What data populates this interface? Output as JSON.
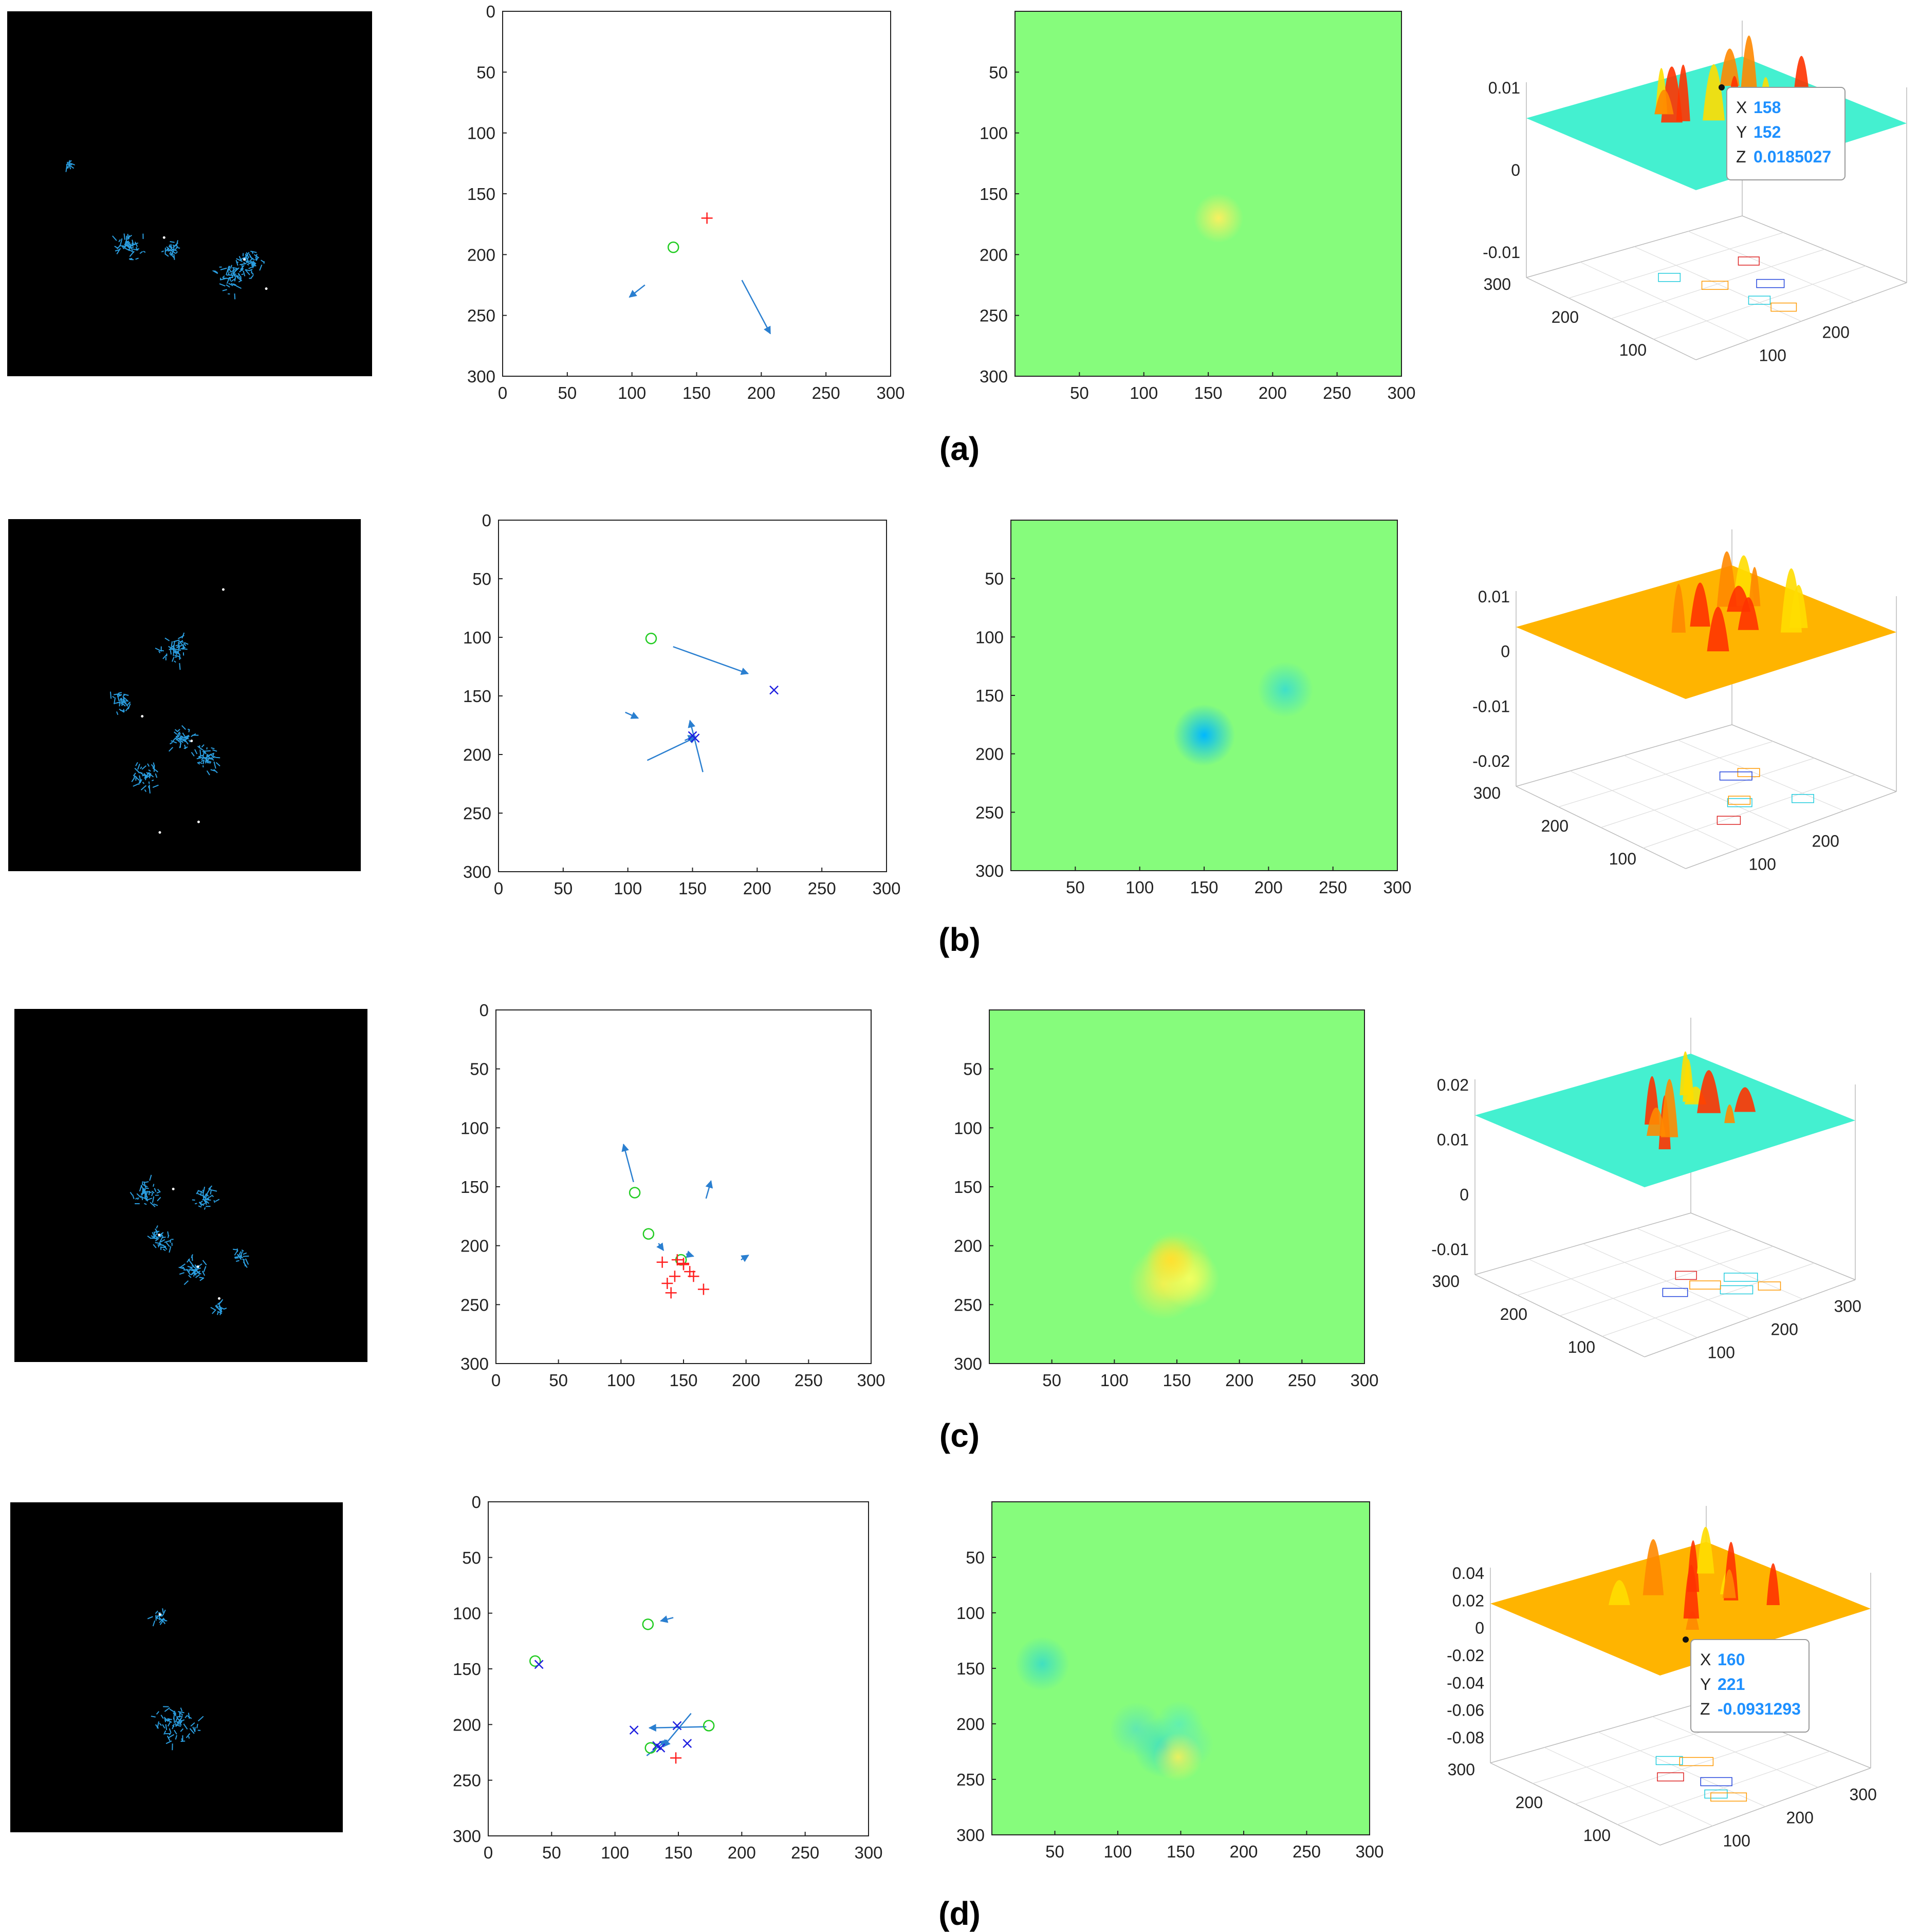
{
  "colors": {
    "flow_background": "#000000",
    "flow_vectors": "#2b9ee0",
    "flow_points": "#ffffff",
    "quiver_arrow": "#2a7fd0",
    "marker_circle": "#22cc22",
    "marker_plus": "#ff2020",
    "marker_x": "#2020e0",
    "heatmap_background": "#86fc7c",
    "tooltip_value": "#1e90ff",
    "axis": "#222222"
  },
  "icons": {
    "flow_image": "optical-flow-image-icon",
    "surface_plot": "3d-surface-plot-icon"
  },
  "rows": [
    {
      "caption": "(a)",
      "surface": {
        "zticks": [
          "0.01",
          "0",
          "-0.01"
        ],
        "ylabels": [
          "300",
          "200",
          "100"
        ],
        "xlabels": [
          "100",
          "200"
        ],
        "plane_color": "#44f0d0",
        "tooltip": {
          "x_label": "X",
          "x_value": "158",
          "y_label": "Y",
          "y_value": "152",
          "z_label": "Z",
          "z_value": "0.0185027"
        }
      }
    },
    {
      "caption": "(b)",
      "surface": {
        "zticks": [
          "0.01",
          "0",
          "-0.01",
          "-0.02"
        ],
        "ylabels": [
          "300",
          "200",
          "100"
        ],
        "xlabels": [
          "100",
          "200"
        ],
        "plane_color": "#ffb400"
      }
    },
    {
      "caption": "(c)",
      "surface": {
        "zticks": [
          "0.02",
          "0.01",
          "0",
          "-0.01"
        ],
        "ylabels": [
          "300",
          "200",
          "100"
        ],
        "xlabels": [
          "100",
          "200",
          "300"
        ],
        "plane_color": "#44f0d0"
      }
    },
    {
      "caption": "(d)",
      "surface": {
        "zticks": [
          "0.04",
          "0.02",
          "0",
          "-0.02",
          "-0.04",
          "-0.06",
          "-0.08"
        ],
        "ylabels": [
          "300",
          "200",
          "100"
        ],
        "xlabels": [
          "100",
          "200",
          "300"
        ],
        "plane_color": "#ffb400",
        "tooltip": {
          "x_label": "X",
          "x_value": "160",
          "y_label": "Y",
          "y_value": "221",
          "z_label": "Z",
          "z_value": "-0.0931293"
        }
      }
    }
  ],
  "chart_data": [
    {
      "type": "scatter",
      "title": "",
      "xlabel": "",
      "ylabel": "",
      "xlim": [
        0,
        300
      ],
      "ylim": [
        0,
        300
      ],
      "y_reversed": true,
      "xticks": [
        "0",
        "50",
        "100",
        "150",
        "200",
        "250",
        "300"
      ],
      "yticks": [
        "0",
        "50",
        "100",
        "150",
        "200",
        "250",
        "300"
      ],
      "circles": [
        [
          132,
          194
        ]
      ],
      "plus": [
        [
          158,
          170
        ]
      ],
      "crosses": [],
      "arrows": [
        [
          110,
          225,
          -12,
          10
        ],
        [
          185,
          221,
          22,
          44
        ]
      ]
    },
    {
      "type": "heatmap",
      "title": "",
      "xlabel": "",
      "ylabel": "",
      "xlim": [
        0,
        300
      ],
      "ylim": [
        0,
        300
      ],
      "y_reversed": true,
      "xticks": [
        "50",
        "100",
        "150",
        "200",
        "250",
        "300"
      ],
      "yticks": [
        "50",
        "100",
        "150",
        "200",
        "250",
        "300"
      ],
      "blobs": [
        [
          158,
          170,
          8,
          "#f8f060"
        ]
      ]
    },
    {
      "type": "scatter",
      "title": "",
      "xlabel": "",
      "ylabel": "",
      "xlim": [
        0,
        300
      ],
      "ylim": [
        0,
        300
      ],
      "y_reversed": true,
      "xticks": [
        "0",
        "50",
        "100",
        "150",
        "200",
        "250",
        "300"
      ],
      "yticks": [
        "0",
        "50",
        "100",
        "150",
        "200",
        "250",
        "300"
      ],
      "circles": [
        [
          118,
          101
        ]
      ],
      "plus": [],
      "crosses": [
        [
          213,
          145
        ],
        [
          150,
          184
        ],
        [
          152,
          186
        ]
      ],
      "arrows": [
        [
          135,
          108,
          58,
          23
        ],
        [
          98,
          164,
          10,
          5
        ],
        [
          115,
          205,
          38,
          -20
        ],
        [
          158,
          215,
          -10,
          -44
        ],
        [
          144,
          188,
          8,
          -4
        ]
      ]
    },
    {
      "type": "heatmap",
      "title": "",
      "xlabel": "",
      "ylabel": "",
      "xlim": [
        0,
        300
      ],
      "ylim": [
        0,
        300
      ],
      "y_reversed": true,
      "xticks": [
        "50",
        "100",
        "150",
        "200",
        "250",
        "300"
      ],
      "yticks": [
        "50",
        "100",
        "150",
        "200",
        "250",
        "300"
      ],
      "blobs": [
        [
          150,
          184,
          10,
          "#00b8ff"
        ],
        [
          213,
          145,
          9,
          "#40e0c8"
        ]
      ]
    },
    {
      "type": "scatter",
      "title": "",
      "xlabel": "",
      "ylabel": "",
      "xlim": [
        0,
        300
      ],
      "ylim": [
        0,
        300
      ],
      "y_reversed": true,
      "xticks": [
        "0",
        "50",
        "100",
        "150",
        "200",
        "250",
        "300"
      ],
      "yticks": [
        "0",
        "50",
        "100",
        "150",
        "200",
        "250",
        "300"
      ],
      "circles": [
        [
          111,
          155
        ],
        [
          122,
          190
        ],
        [
          148,
          212
        ]
      ],
      "plus": [
        [
          133,
          214
        ],
        [
          145,
          212
        ],
        [
          150,
          215
        ],
        [
          155,
          222
        ],
        [
          158,
          226
        ],
        [
          143,
          226
        ],
        [
          137,
          232
        ],
        [
          150,
          216
        ],
        [
          140,
          240
        ],
        [
          166,
          237
        ]
      ],
      "crosses": [],
      "arrows": [
        [
          110,
          146,
          -8,
          -32
        ],
        [
          168,
          160,
          4,
          -15
        ],
        [
          130,
          198,
          4,
          6
        ],
        [
          196,
          212,
          6,
          -4
        ],
        [
          152,
          207,
          6,
          2
        ]
      ]
    },
    {
      "type": "heatmap",
      "title": "",
      "xlabel": "",
      "ylabel": "",
      "xlim": [
        0,
        300
      ],
      "ylim": [
        0,
        300
      ],
      "y_reversed": true,
      "xticks": [
        "50",
        "100",
        "150",
        "200",
        "250",
        "300"
      ],
      "yticks": [
        "50",
        "100",
        "150",
        "200",
        "250",
        "300"
      ],
      "blobs": [
        [
          150,
          218,
          12,
          "#e8f040"
        ],
        [
          140,
          232,
          12,
          "#f0f050"
        ],
        [
          160,
          228,
          10,
          "#f0ff60"
        ],
        [
          145,
          212,
          8,
          "#ffe030"
        ]
      ]
    },
    {
      "type": "scatter",
      "title": "",
      "xlabel": "",
      "ylabel": "",
      "xlim": [
        0,
        300
      ],
      "ylim": [
        0,
        300
      ],
      "y_reversed": true,
      "xticks": [
        "0",
        "50",
        "100",
        "150",
        "200",
        "250",
        "300"
      ],
      "yticks": [
        "0",
        "50",
        "100",
        "150",
        "200",
        "250",
        "300"
      ],
      "circles": [
        [
          37,
          143
        ],
        [
          126,
          110
        ],
        [
          174,
          201
        ],
        [
          128,
          221
        ]
      ],
      "plus": [
        [
          148,
          230
        ]
      ],
      "crosses": [
        [
          40,
          146
        ],
        [
          115,
          205
        ],
        [
          136,
          221
        ],
        [
          133,
          219
        ],
        [
          157,
          217
        ],
        [
          149,
          201
        ]
      ],
      "arrows": [
        [
          146,
          104,
          -10,
          3
        ],
        [
          172,
          202,
          -45,
          1
        ],
        [
          160,
          190,
          -22,
          30
        ],
        [
          125,
          228,
          16,
          -14
        ]
      ]
    },
    {
      "type": "heatmap",
      "title": "",
      "xlabel": "",
      "ylabel": "",
      "xlim": [
        0,
        300
      ],
      "ylim": [
        0,
        300
      ],
      "y_reversed": true,
      "xticks": [
        "50",
        "100",
        "150",
        "200",
        "250",
        "300"
      ],
      "yticks": [
        "50",
        "100",
        "150",
        "200",
        "250",
        "300"
      ],
      "blobs": [
        [
          40,
          146,
          9,
          "#40e0c0"
        ],
        [
          115,
          205,
          9,
          "#60e8b0"
        ],
        [
          136,
          221,
          10,
          "#40e0c0"
        ],
        [
          149,
          201,
          8,
          "#60f0b0"
        ],
        [
          157,
          218,
          8,
          "#70f0a0"
        ],
        [
          148,
          230,
          8,
          "#e8f060"
        ]
      ]
    }
  ]
}
